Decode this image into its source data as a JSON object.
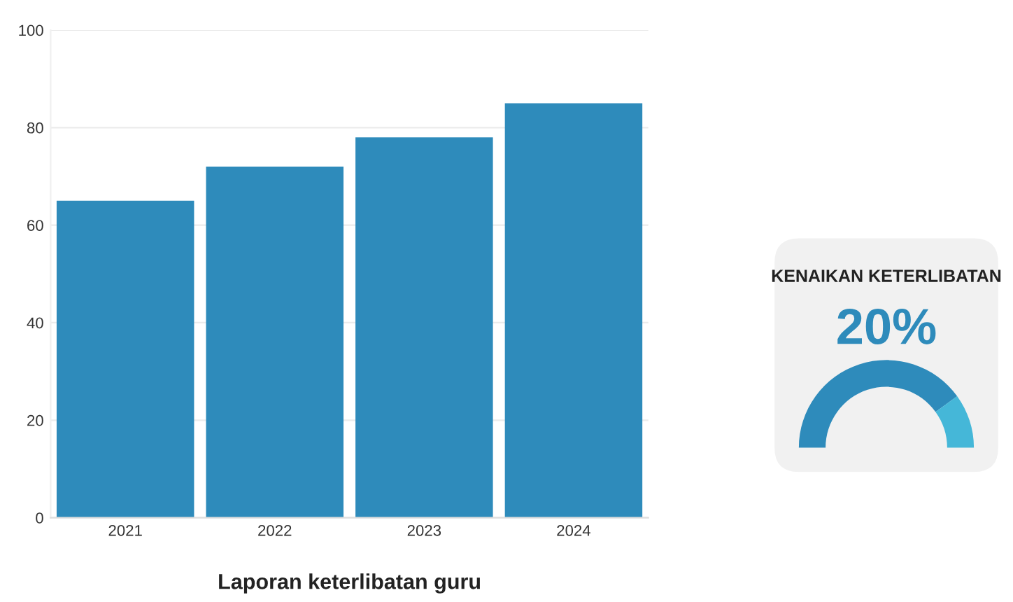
{
  "chart_data": [
    {
      "type": "bar",
      "title": "Laporan keterlibatan guru",
      "categories": [
        "2021",
        "2022",
        "2023",
        "2024"
      ],
      "values": [
        65,
        72,
        78,
        85
      ],
      "color": "#2e8bbb",
      "ylim": [
        0,
        100
      ],
      "yticks": [
        0,
        20,
        40,
        60,
        80,
        100
      ],
      "grid": "y"
    },
    {
      "type": "donut",
      "title": "KENAIKAN KETERLIBATAN",
      "annotations": [
        "20%"
      ],
      "categories": [
        null,
        null
      ],
      "values": [
        80,
        20
      ],
      "colors": [
        "#2e8bbb",
        "#45b7d8"
      ]
    }
  ]
}
